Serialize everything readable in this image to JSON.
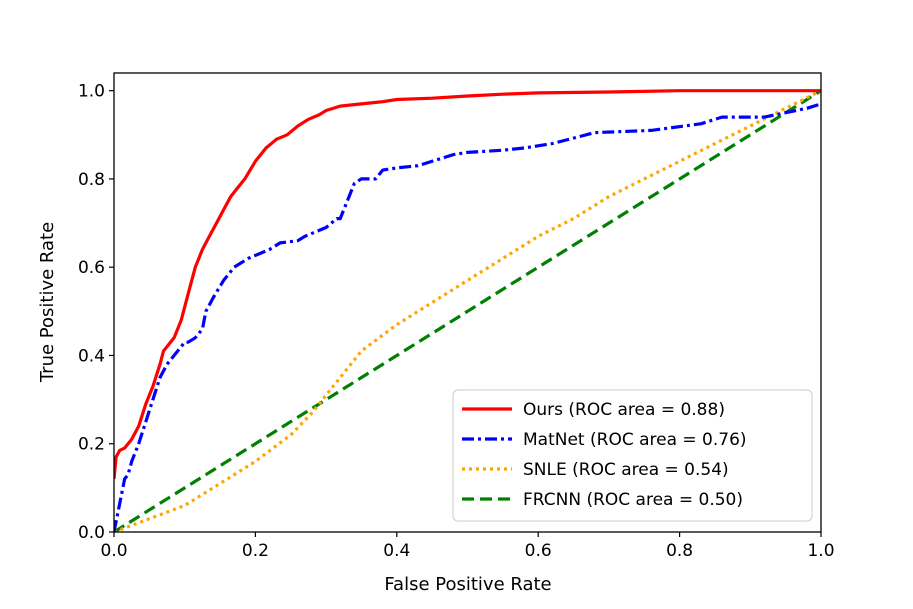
{
  "chart_data": {
    "type": "line",
    "title": "",
    "xlabel": "False Positive Rate",
    "ylabel": "True Positive Rate",
    "xlim": [
      0.0,
      1.0
    ],
    "ylim": [
      0.0,
      1.04
    ],
    "xticks": [
      0.0,
      0.2,
      0.4,
      0.6,
      0.8,
      1.0
    ],
    "xtick_labels": [
      "0.0",
      "0.2",
      "0.4",
      "0.6",
      "0.8",
      "1.0"
    ],
    "yticks": [
      0.0,
      0.2,
      0.4,
      0.6,
      0.8,
      1.0
    ],
    "ytick_labels": [
      "0.0",
      "0.2",
      "0.4",
      "0.6",
      "0.8",
      "1.0"
    ],
    "grid": false,
    "legend_position": "lower-right",
    "series": [
      {
        "name": "Ours (ROC area = 0.88)",
        "color": "#ff0000",
        "style": "solid",
        "x": [
          0.0,
          0.003,
          0.008,
          0.015,
          0.025,
          0.035,
          0.045,
          0.055,
          0.065,
          0.07,
          0.075,
          0.085,
          0.095,
          0.105,
          0.115,
          0.125,
          0.135,
          0.145,
          0.155,
          0.165,
          0.175,
          0.185,
          0.2,
          0.215,
          0.23,
          0.245,
          0.26,
          0.275,
          0.29,
          0.3,
          0.32,
          0.35,
          0.38,
          0.4,
          0.45,
          0.5,
          0.55,
          0.6,
          0.7,
          0.8,
          0.9,
          1.0
        ],
        "y": [
          0.12,
          0.17,
          0.185,
          0.19,
          0.21,
          0.24,
          0.29,
          0.33,
          0.38,
          0.41,
          0.42,
          0.44,
          0.48,
          0.54,
          0.6,
          0.64,
          0.67,
          0.7,
          0.73,
          0.76,
          0.78,
          0.8,
          0.84,
          0.87,
          0.89,
          0.9,
          0.92,
          0.935,
          0.945,
          0.955,
          0.965,
          0.97,
          0.975,
          0.98,
          0.983,
          0.988,
          0.992,
          0.995,
          0.997,
          1.0,
          1.0,
          1.0
        ]
      },
      {
        "name": "MatNet (ROC area = 0.76)",
        "color": "#0000ff",
        "style": "dashdot",
        "x": [
          0.0,
          0.01,
          0.015,
          0.02,
          0.025,
          0.035,
          0.045,
          0.055,
          0.065,
          0.075,
          0.085,
          0.095,
          0.1,
          0.105,
          0.115,
          0.125,
          0.13,
          0.14,
          0.155,
          0.17,
          0.19,
          0.22,
          0.235,
          0.26,
          0.27,
          0.3,
          0.315,
          0.32,
          0.33,
          0.34,
          0.35,
          0.37,
          0.38,
          0.4,
          0.43,
          0.48,
          0.5,
          0.55,
          0.58,
          0.62,
          0.68,
          0.76,
          0.83,
          0.86,
          0.92,
          0.98,
          1.0
        ],
        "y": [
          0.0,
          0.08,
          0.12,
          0.13,
          0.16,
          0.2,
          0.25,
          0.3,
          0.35,
          0.38,
          0.4,
          0.42,
          0.43,
          0.43,
          0.44,
          0.46,
          0.5,
          0.53,
          0.57,
          0.6,
          0.62,
          0.64,
          0.655,
          0.66,
          0.67,
          0.69,
          0.71,
          0.71,
          0.75,
          0.79,
          0.8,
          0.8,
          0.82,
          0.825,
          0.83,
          0.855,
          0.86,
          0.865,
          0.87,
          0.88,
          0.905,
          0.91,
          0.925,
          0.94,
          0.94,
          0.96,
          0.97
        ]
      },
      {
        "name": "SNLE (ROC area = 0.54)",
        "color": "#ffa500",
        "style": "dotted",
        "x": [
          0.0,
          0.05,
          0.1,
          0.15,
          0.2,
          0.25,
          0.28,
          0.3,
          0.32,
          0.35,
          0.4,
          0.45,
          0.5,
          0.55,
          0.6,
          0.65,
          0.7,
          0.75,
          0.8,
          0.85,
          0.9,
          0.95,
          1.0
        ],
        "y": [
          0.0,
          0.03,
          0.06,
          0.11,
          0.16,
          0.22,
          0.27,
          0.31,
          0.35,
          0.41,
          0.47,
          0.52,
          0.57,
          0.62,
          0.67,
          0.71,
          0.76,
          0.8,
          0.84,
          0.88,
          0.92,
          0.96,
          1.0
        ]
      },
      {
        "name": "FRCNN (ROC area = 0.50)",
        "color": "#008000",
        "style": "dashed",
        "x": [
          0.0,
          1.0
        ],
        "y": [
          0.0,
          1.0
        ]
      }
    ]
  }
}
